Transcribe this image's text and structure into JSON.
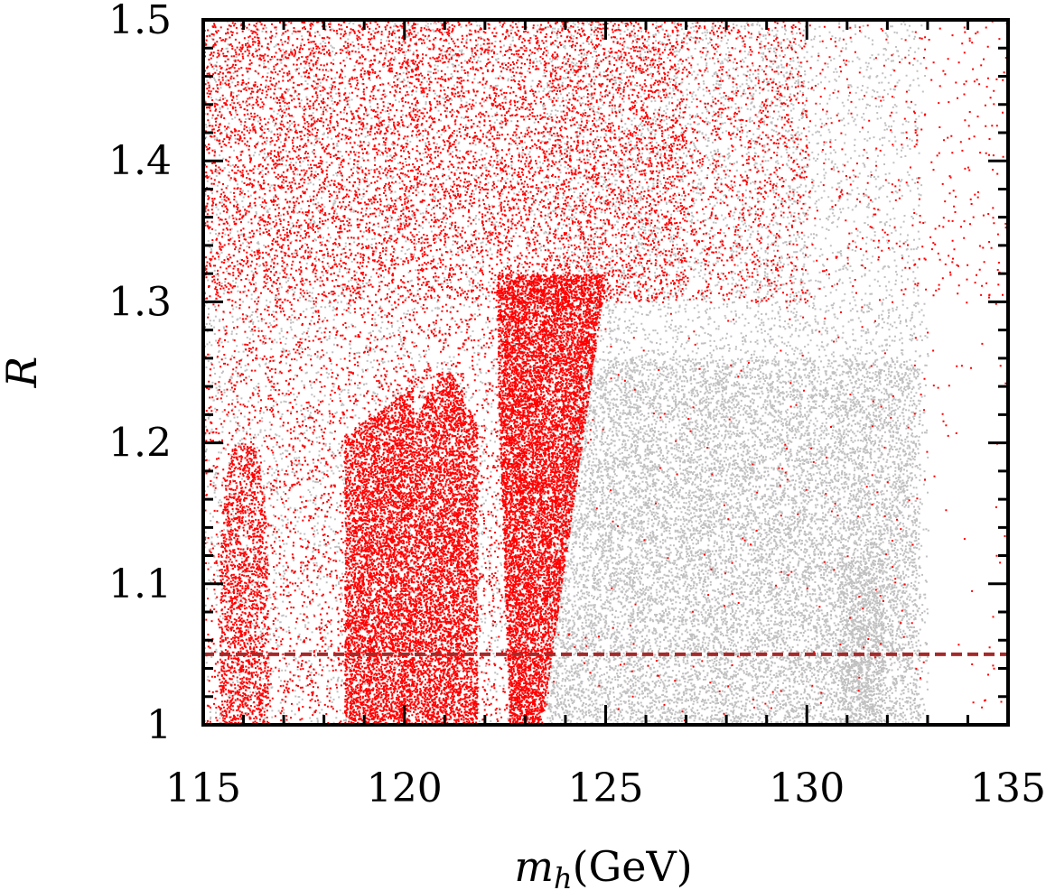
{
  "chart_data": {
    "type": "scatter",
    "xlabel": "m_h(GeV)",
    "xlabel_parts": {
      "symbol": "m",
      "subscript": "h",
      "unit": "(GeV)"
    },
    "ylabel": "R",
    "xlim": [
      115,
      135
    ],
    "ylim": [
      1.0,
      1.5
    ],
    "x_ticks": [
      115,
      120,
      125,
      130,
      135
    ],
    "y_ticks": [
      1,
      1.1,
      1.2,
      1.3,
      1.4,
      1.5
    ],
    "x_tick_labels": [
      "115",
      "120",
      "125",
      "130",
      "135"
    ],
    "y_tick_labels": [
      "1",
      "1.1",
      "1.2",
      "1.3",
      "1.4",
      "1.5"
    ],
    "grid": false,
    "legend": "none",
    "series": [
      {
        "color": "#c0c0c0",
        "description_regions": [
          {
            "x_range": [
              115,
              133
            ],
            "y_range": [
              1.0,
              1.5
            ]
          },
          {
            "x_range": [
              123.5,
              132.8
            ],
            "y_range": [
              1.0,
              1.26
            ]
          },
          {
            "x_range": [
              131.0,
              131.8
            ],
            "y_range": [
              1.0,
              1.1
            ]
          }
        ]
      },
      {
        "color": "#ff0000",
        "description_regions": [
          {
            "x_range": [
              115.5,
              116.6
            ],
            "y_range": [
              1.0,
              1.2
            ]
          },
          {
            "x_range": [
              118.5,
              121.8
            ],
            "y_range": [
              1.0,
              1.25
            ]
          },
          {
            "x_range": [
              122.5,
              125.0
            ],
            "y_range": [
              1.0,
              1.32
            ]
          },
          {
            "x_range": [
              115,
              130
            ],
            "y_range": [
              1.3,
              1.5
            ]
          }
        ]
      }
    ],
    "reference_line": {
      "y": 1.05,
      "style": "dashed",
      "color": "#a52a2a"
    }
  }
}
